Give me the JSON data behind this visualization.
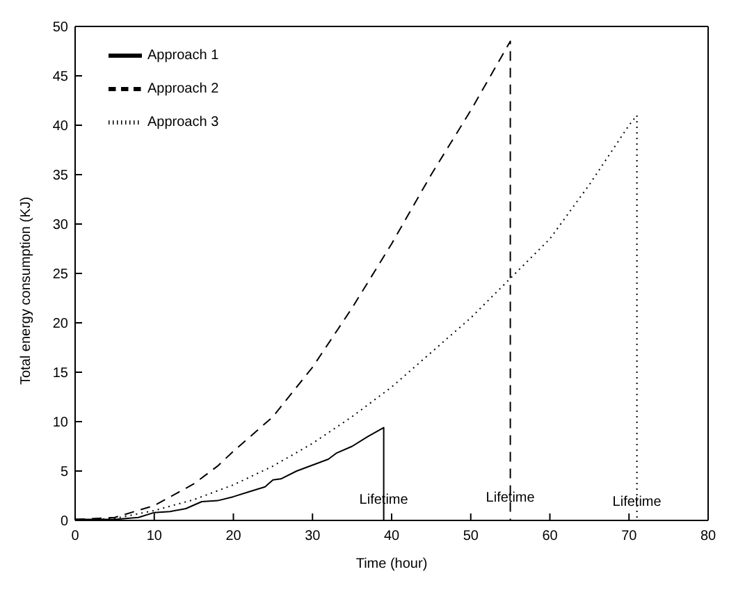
{
  "chart_data": {
    "type": "line",
    "xlabel": "Time (hour)",
    "ylabel": "Total energy consumption (KJ)",
    "xlim": [
      0,
      80
    ],
    "ylim": [
      0,
      50
    ],
    "xticks": [
      0,
      10,
      20,
      30,
      40,
      50,
      60,
      70,
      80
    ],
    "yticks": [
      0,
      5,
      10,
      15,
      20,
      25,
      30,
      35,
      40,
      45,
      50
    ],
    "legend": "top left",
    "marker": "none",
    "series": [
      {
        "name": "Approach 3",
        "color": "#000000",
        "line_style": "dotted",
        "x": [
          0,
          5,
          10,
          15,
          20,
          25,
          30,
          35,
          40,
          45,
          50,
          55,
          60,
          65,
          70,
          71,
          71
        ],
        "values": [
          0,
          0.2,
          1,
          2.1,
          3.6,
          5.5,
          7.8,
          10.5,
          13.5,
          17,
          20.5,
          24.5,
          28.5,
          34,
          40,
          41,
          0
        ]
      },
      {
        "name": "Approach 2",
        "color": "#000000",
        "line_style": "dashed",
        "x": [
          0,
          5,
          10,
          15,
          18,
          20,
          25,
          30,
          35,
          40,
          45,
          50,
          55,
          55
        ],
        "values": [
          0.1,
          0.3,
          1.5,
          3.7,
          5.5,
          7,
          10.5,
          15.5,
          21.5,
          28,
          35,
          41.5,
          48.5,
          0
        ]
      },
      {
        "name": "Approach 1",
        "color": "#000000",
        "line_style": "solid",
        "x": [
          0,
          5,
          8,
          10,
          12,
          14,
          16,
          18,
          20,
          22,
          24,
          25,
          26,
          28,
          30,
          32,
          33,
          35,
          37,
          39,
          39
        ],
        "values": [
          0.1,
          0.1,
          0.3,
          0.8,
          0.9,
          1.2,
          1.9,
          2.0,
          2.4,
          2.9,
          3.4,
          4.1,
          4.2,
          5.0,
          5.6,
          6.2,
          6.8,
          7.5,
          8.5,
          9.4,
          0
        ]
      }
    ],
    "annotations": [
      {
        "text": "Lifetime",
        "x": 39,
        "y": 2.2
      },
      {
        "text": "Lifetime",
        "x": 55,
        "y": 2.4
      },
      {
        "text": "Lifetime",
        "x": 71,
        "y": 2.0
      }
    ]
  }
}
